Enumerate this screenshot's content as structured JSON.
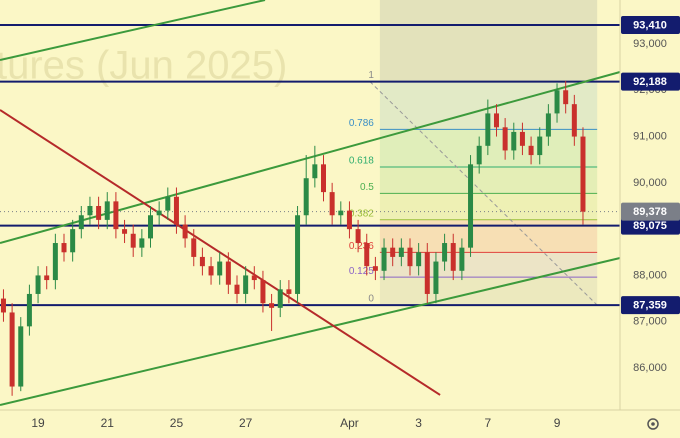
{
  "chart_data": {
    "type": "candlestick",
    "watermark": "tures (Jun 2025)",
    "up_color": "#2b8a46",
    "down_color": "#c9302c",
    "xlim": [
      -1.1,
      16.82
    ],
    "ylim": [
      85093,
      93950
    ],
    "xticks": [
      {
        "value": 0,
        "label": "19"
      },
      {
        "value": 2,
        "label": "21"
      },
      {
        "value": 4,
        "label": "25"
      },
      {
        "value": 6,
        "label": "27"
      },
      {
        "value": 9,
        "label": "Apr"
      },
      {
        "value": 11,
        "label": "3"
      },
      {
        "value": 13,
        "label": "7"
      },
      {
        "value": 15,
        "label": "9"
      }
    ],
    "yticks": [
      {
        "value": 93000,
        "label": "93,000"
      },
      {
        "value": 92000,
        "label": "92,000"
      },
      {
        "value": 91000,
        "label": "91,000"
      },
      {
        "value": 90000,
        "label": "90,000"
      },
      {
        "value": 89000,
        "label": "89,000"
      },
      {
        "value": 88000,
        "label": "88,000"
      },
      {
        "value": 87000,
        "label": "87,000"
      },
      {
        "value": 86000,
        "label": "86,000"
      }
    ],
    "x": [
      -1,
      -0.75,
      -0.5,
      -0.25,
      0,
      0.25,
      0.5,
      0.75,
      1,
      1.25,
      1.5,
      1.75,
      2,
      2.25,
      2.5,
      2.75,
      3,
      3.25,
      3.5,
      3.75,
      4,
      4.25,
      4.5,
      4.75,
      5,
      5.25,
      5.5,
      5.75,
      6,
      6.25,
      6.5,
      6.75,
      7,
      7.25,
      7.5,
      7.75,
      8,
      8.25,
      8.5,
      8.75,
      9,
      9.25,
      9.5,
      9.75,
      10,
      10.25,
      10.5,
      10.75,
      11,
      11.25,
      11.5,
      11.75,
      12,
      12.25,
      12.5,
      12.75,
      13,
      13.25,
      13.5,
      13.75,
      14,
      14.25,
      14.5,
      14.75,
      15,
      15.25,
      15.5,
      15.75
    ],
    "open": [
      87500,
      87200,
      85600,
      86900,
      87600,
      88000,
      87900,
      88700,
      88500,
      89000,
      89300,
      89500,
      89200,
      89600,
      89000,
      88900,
      88600,
      88800,
      89300,
      89400,
      89700,
      89100,
      88800,
      88400,
      88200,
      88000,
      88300,
      87800,
      87600,
      88000,
      87900,
      87400,
      87300,
      87700,
      87600,
      89300,
      90100,
      90400,
      89800,
      89300,
      89400,
      89000,
      88700,
      88200,
      88100,
      88600,
      88400,
      88600,
      88200,
      88500,
      87600,
      88300,
      88700,
      88100,
      88600,
      90400,
      90800,
      91500,
      91200,
      90700,
      91100,
      90800,
      90600,
      91000,
      91500,
      92000,
      91700,
      91000
    ],
    "high": [
      87700,
      87400,
      87100,
      87800,
      88200,
      88200,
      88900,
      88900,
      89200,
      89500,
      89700,
      89700,
      89800,
      89800,
      89200,
      89100,
      89000,
      89500,
      89600,
      89900,
      89900,
      89300,
      89000,
      88600,
      88400,
      88500,
      88500,
      88000,
      88200,
      88200,
      88100,
      87600,
      87900,
      87900,
      89500,
      90600,
      90800,
      90600,
      90000,
      89600,
      89600,
      89200,
      88900,
      88400,
      88800,
      88800,
      88800,
      88800,
      88700,
      88700,
      88500,
      88900,
      88900,
      88800,
      90600,
      91000,
      91800,
      91700,
      91400,
      91300,
      91300,
      91000,
      91200,
      91700,
      92150,
      92200,
      91900,
      91200
    ],
    "low": [
      87000,
      85400,
      85500,
      86700,
      87400,
      87700,
      87700,
      88300,
      88300,
      88800,
      89100,
      89000,
      89000,
      88800,
      88700,
      88400,
      88400,
      88600,
      89100,
      89200,
      88900,
      88600,
      88200,
      88000,
      87800,
      87800,
      87600,
      87400,
      87400,
      87700,
      87200,
      86800,
      87100,
      87400,
      87400,
      89100,
      89900,
      89600,
      89100,
      89100,
      88800,
      88500,
      88000,
      87900,
      87900,
      88200,
      88200,
      88000,
      88000,
      87400,
      87400,
      88100,
      87900,
      87900,
      88400,
      90200,
      90600,
      91000,
      90500,
      90500,
      90600,
      90400,
      90400,
      90800,
      91300,
      91500,
      90800,
      89100
    ],
    "close": [
      87200,
      85600,
      86900,
      87600,
      88000,
      87900,
      88700,
      88500,
      89000,
      89300,
      89500,
      89200,
      89600,
      89000,
      88900,
      88600,
      88800,
      89300,
      89400,
      89700,
      89100,
      88800,
      88400,
      88200,
      88000,
      88300,
      87800,
      87600,
      88000,
      87900,
      87400,
      87300,
      87700,
      87600,
      89300,
      90100,
      90400,
      89800,
      89300,
      89400,
      89000,
      88700,
      88200,
      88100,
      88600,
      88400,
      88600,
      88200,
      88500,
      87600,
      88300,
      88700,
      88100,
      88600,
      90400,
      90800,
      91500,
      91200,
      90700,
      91100,
      90800,
      90600,
      91000,
      91500,
      92000,
      91700,
      91000,
      89378
    ],
    "levels": [
      {
        "value": 93410,
        "label": "93,410"
      },
      {
        "value": 92188,
        "label": "92,188"
      },
      {
        "value": 89075,
        "label": "89,075"
      },
      {
        "value": 87359,
        "label": "87,359"
      }
    ],
    "level_color": "#131c6e",
    "last_price": {
      "value": 89378,
      "label": "89,378"
    },
    "last_price_color": "#7b7f88",
    "fib": {
      "x": [
        9.88,
        16.16
      ],
      "anchor": [
        87359,
        92188
      ],
      "levels": [
        1,
        0.786,
        0.618,
        0.5,
        0.382,
        0.236,
        0.125,
        0
      ],
      "colors": [
        "#8a8a8a",
        "#3a8fc6",
        "#2fae6e",
        "#4caf50",
        "#9bbf3a",
        "#e0413a",
        "#8a63c6",
        "#8a8a8a"
      ]
    },
    "trendlines": [
      {
        "color": "#3c9a3c",
        "x": [
          -1.1,
          16.82
        ],
        "y": [
          88701,
          92395
        ]
      },
      {
        "color": "#3c9a3c",
        "x": [
          -1.1,
          16.82
        ],
        "y": [
          85201,
          88377
        ]
      },
      {
        "color": "#3c9a3c",
        "x": [
          -1.1,
          6.56
        ],
        "y": [
          92654,
          93950
        ]
      },
      {
        "color": "#b52a2a",
        "x": [
          -1.1,
          11.62
        ],
        "y": [
          91574,
          85418
        ]
      }
    ]
  }
}
